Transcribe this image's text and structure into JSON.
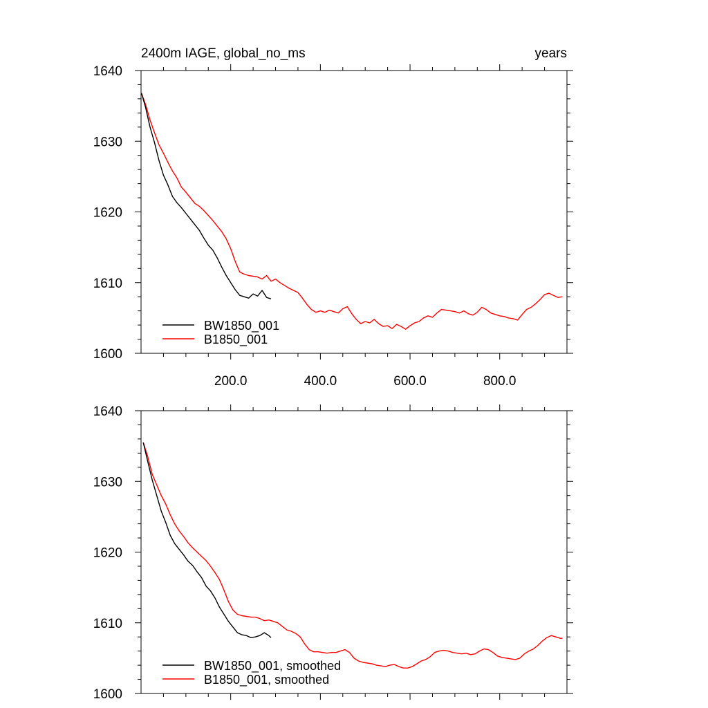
{
  "chart_data": [
    {
      "type": "line",
      "title": "2400m IAGE, global_no_ms",
      "title_right": "years",
      "xlim": [
        0,
        950
      ],
      "ylim": [
        1600,
        1640
      ],
      "x_ticks": [
        200,
        400,
        600,
        800
      ],
      "x_tick_labels": [
        "200.0",
        "400.0",
        "600.0",
        "800.0"
      ],
      "y_ticks": [
        1600,
        1610,
        1620,
        1630,
        1640
      ],
      "y_tick_labels": [
        "1600",
        "1610",
        "1620",
        "1630",
        "1640"
      ],
      "legend_placement": "bottom-left",
      "series": [
        {
          "name": "BW1850_001",
          "color": "#000000",
          "x": [
            1,
            10,
            20,
            30,
            40,
            50,
            60,
            70,
            80,
            90,
            100,
            110,
            120,
            130,
            140,
            150,
            160,
            170,
            180,
            190,
            200,
            210,
            220,
            230,
            240,
            250,
            260,
            270,
            280,
            290
          ],
          "y": [
            1636.8,
            1634.8,
            1632.0,
            1629.8,
            1627.3,
            1625.2,
            1623.8,
            1622.2,
            1621.3,
            1620.6,
            1619.8,
            1619.0,
            1618.2,
            1617.4,
            1616.3,
            1615.3,
            1614.6,
            1613.5,
            1612.2,
            1611.0,
            1610.0,
            1609.0,
            1608.2,
            1608.0,
            1607.8,
            1608.4,
            1608.1,
            1608.9,
            1607.9,
            1607.7
          ]
        },
        {
          "name": "B1850_001",
          "color": "#ff0000",
          "x": [
            1,
            10,
            20,
            30,
            40,
            50,
            60,
            70,
            80,
            90,
            100,
            110,
            120,
            130,
            140,
            150,
            160,
            170,
            180,
            190,
            200,
            210,
            220,
            230,
            240,
            250,
            260,
            270,
            280,
            290,
            300,
            310,
            320,
            330,
            340,
            350,
            360,
            370,
            380,
            390,
            400,
            410,
            420,
            430,
            440,
            450,
            460,
            470,
            480,
            490,
            500,
            510,
            520,
            530,
            540,
            550,
            560,
            570,
            580,
            590,
            600,
            610,
            620,
            630,
            640,
            650,
            660,
            670,
            680,
            690,
            700,
            710,
            720,
            730,
            740,
            750,
            760,
            770,
            780,
            790,
            800,
            810,
            820,
            830,
            840,
            850,
            860,
            870,
            880,
            890,
            900,
            910,
            920,
            930,
            940
          ],
          "y": [
            1636.8,
            1635.2,
            1633.0,
            1631.2,
            1629.5,
            1628.3,
            1627.0,
            1625.8,
            1624.8,
            1623.5,
            1622.8,
            1622.0,
            1621.2,
            1620.8,
            1620.2,
            1619.5,
            1618.8,
            1618.0,
            1617.2,
            1616.2,
            1614.8,
            1613.0,
            1611.5,
            1611.2,
            1611.0,
            1610.9,
            1610.8,
            1610.5,
            1611.0,
            1610.2,
            1610.5,
            1610.0,
            1609.6,
            1609.2,
            1608.9,
            1608.6,
            1607.8,
            1606.9,
            1606.2,
            1605.8,
            1606.0,
            1605.8,
            1606.1,
            1605.9,
            1605.7,
            1606.3,
            1606.6,
            1605.6,
            1604.8,
            1604.2,
            1604.5,
            1604.3,
            1604.8,
            1604.2,
            1603.8,
            1603.9,
            1603.5,
            1604.1,
            1603.8,
            1603.4,
            1603.9,
            1604.3,
            1604.5,
            1605.0,
            1605.3,
            1605.1,
            1605.7,
            1606.2,
            1606.1,
            1606.0,
            1605.9,
            1605.7,
            1606.0,
            1605.6,
            1605.4,
            1605.8,
            1606.5,
            1606.2,
            1605.7,
            1605.5,
            1605.3,
            1605.2,
            1605.0,
            1604.9,
            1604.7,
            1605.5,
            1606.2,
            1606.5,
            1607.0,
            1607.6,
            1608.3,
            1608.5,
            1608.2,
            1607.9,
            1608.0
          ]
        }
      ]
    },
    {
      "type": "line",
      "xlim": [
        0,
        950
      ],
      "ylim": [
        1600,
        1640
      ],
      "x_ticks": [
        200,
        400,
        600,
        800
      ],
      "y_ticks": [
        1600,
        1610,
        1620,
        1630,
        1640
      ],
      "y_tick_labels": [
        "1600",
        "1610",
        "1620",
        "1630",
        "1640"
      ],
      "legend_placement": "bottom-left",
      "series": [
        {
          "name": "BW1850_001, smoothed",
          "color": "#000000",
          "x": [
            5,
            15,
            25,
            35,
            45,
            55,
            65,
            75,
            85,
            95,
            105,
            115,
            125,
            135,
            145,
            155,
            165,
            175,
            185,
            195,
            205,
            215,
            225,
            235,
            245,
            255,
            265,
            275,
            285,
            290
          ],
          "y": [
            1635.5,
            1632.8,
            1630.2,
            1628.0,
            1625.8,
            1624.2,
            1622.4,
            1621.2,
            1620.4,
            1619.6,
            1618.7,
            1618.1,
            1617.2,
            1616.4,
            1615.2,
            1614.5,
            1613.5,
            1612.2,
            1611.2,
            1610.2,
            1609.4,
            1608.6,
            1608.3,
            1608.2,
            1607.9,
            1608.0,
            1608.2,
            1608.6,
            1608.2,
            1607.9
          ]
        },
        {
          "name": "B1850_001, smoothed",
          "color": "#ff0000",
          "x": [
            5,
            15,
            25,
            35,
            45,
            55,
            65,
            75,
            85,
            95,
            105,
            115,
            125,
            135,
            145,
            155,
            165,
            175,
            185,
            195,
            205,
            215,
            225,
            235,
            245,
            255,
            265,
            275,
            285,
            295,
            305,
            315,
            325,
            335,
            345,
            355,
            365,
            375,
            385,
            395,
            405,
            415,
            425,
            435,
            445,
            455,
            465,
            475,
            485,
            495,
            505,
            515,
            525,
            535,
            545,
            555,
            565,
            575,
            585,
            595,
            605,
            615,
            625,
            635,
            645,
            655,
            665,
            675,
            685,
            695,
            705,
            715,
            725,
            735,
            745,
            755,
            765,
            775,
            785,
            795,
            805,
            815,
            825,
            835,
            845,
            855,
            865,
            875,
            885,
            895,
            905,
            915,
            925,
            935,
            940
          ],
          "y": [
            1635.5,
            1633.5,
            1631.0,
            1629.5,
            1628.0,
            1626.8,
            1625.3,
            1624.0,
            1623.0,
            1622.2,
            1621.3,
            1620.6,
            1620.0,
            1619.4,
            1618.8,
            1618.0,
            1617.1,
            1616.1,
            1614.6,
            1613.0,
            1611.8,
            1611.2,
            1611.0,
            1610.9,
            1610.8,
            1610.8,
            1610.6,
            1610.3,
            1610.4,
            1610.2,
            1610.0,
            1609.5,
            1609.0,
            1608.8,
            1608.5,
            1608.0,
            1607.0,
            1606.2,
            1605.9,
            1605.9,
            1605.8,
            1605.7,
            1605.8,
            1605.8,
            1606.0,
            1606.2,
            1605.8,
            1605.0,
            1604.6,
            1604.4,
            1604.3,
            1604.2,
            1604.0,
            1603.9,
            1603.8,
            1604.0,
            1604.1,
            1603.8,
            1603.6,
            1603.6,
            1603.8,
            1604.2,
            1604.6,
            1604.8,
            1605.2,
            1605.8,
            1606.0,
            1606.1,
            1606.0,
            1605.8,
            1605.7,
            1605.6,
            1605.7,
            1605.5,
            1605.6,
            1606.0,
            1606.3,
            1606.2,
            1605.8,
            1605.3,
            1605.1,
            1605.0,
            1604.9,
            1604.8,
            1605.0,
            1605.6,
            1606.0,
            1606.3,
            1606.8,
            1607.4,
            1607.9,
            1608.2,
            1608.0,
            1607.8,
            1607.8
          ]
        }
      ]
    }
  ]
}
